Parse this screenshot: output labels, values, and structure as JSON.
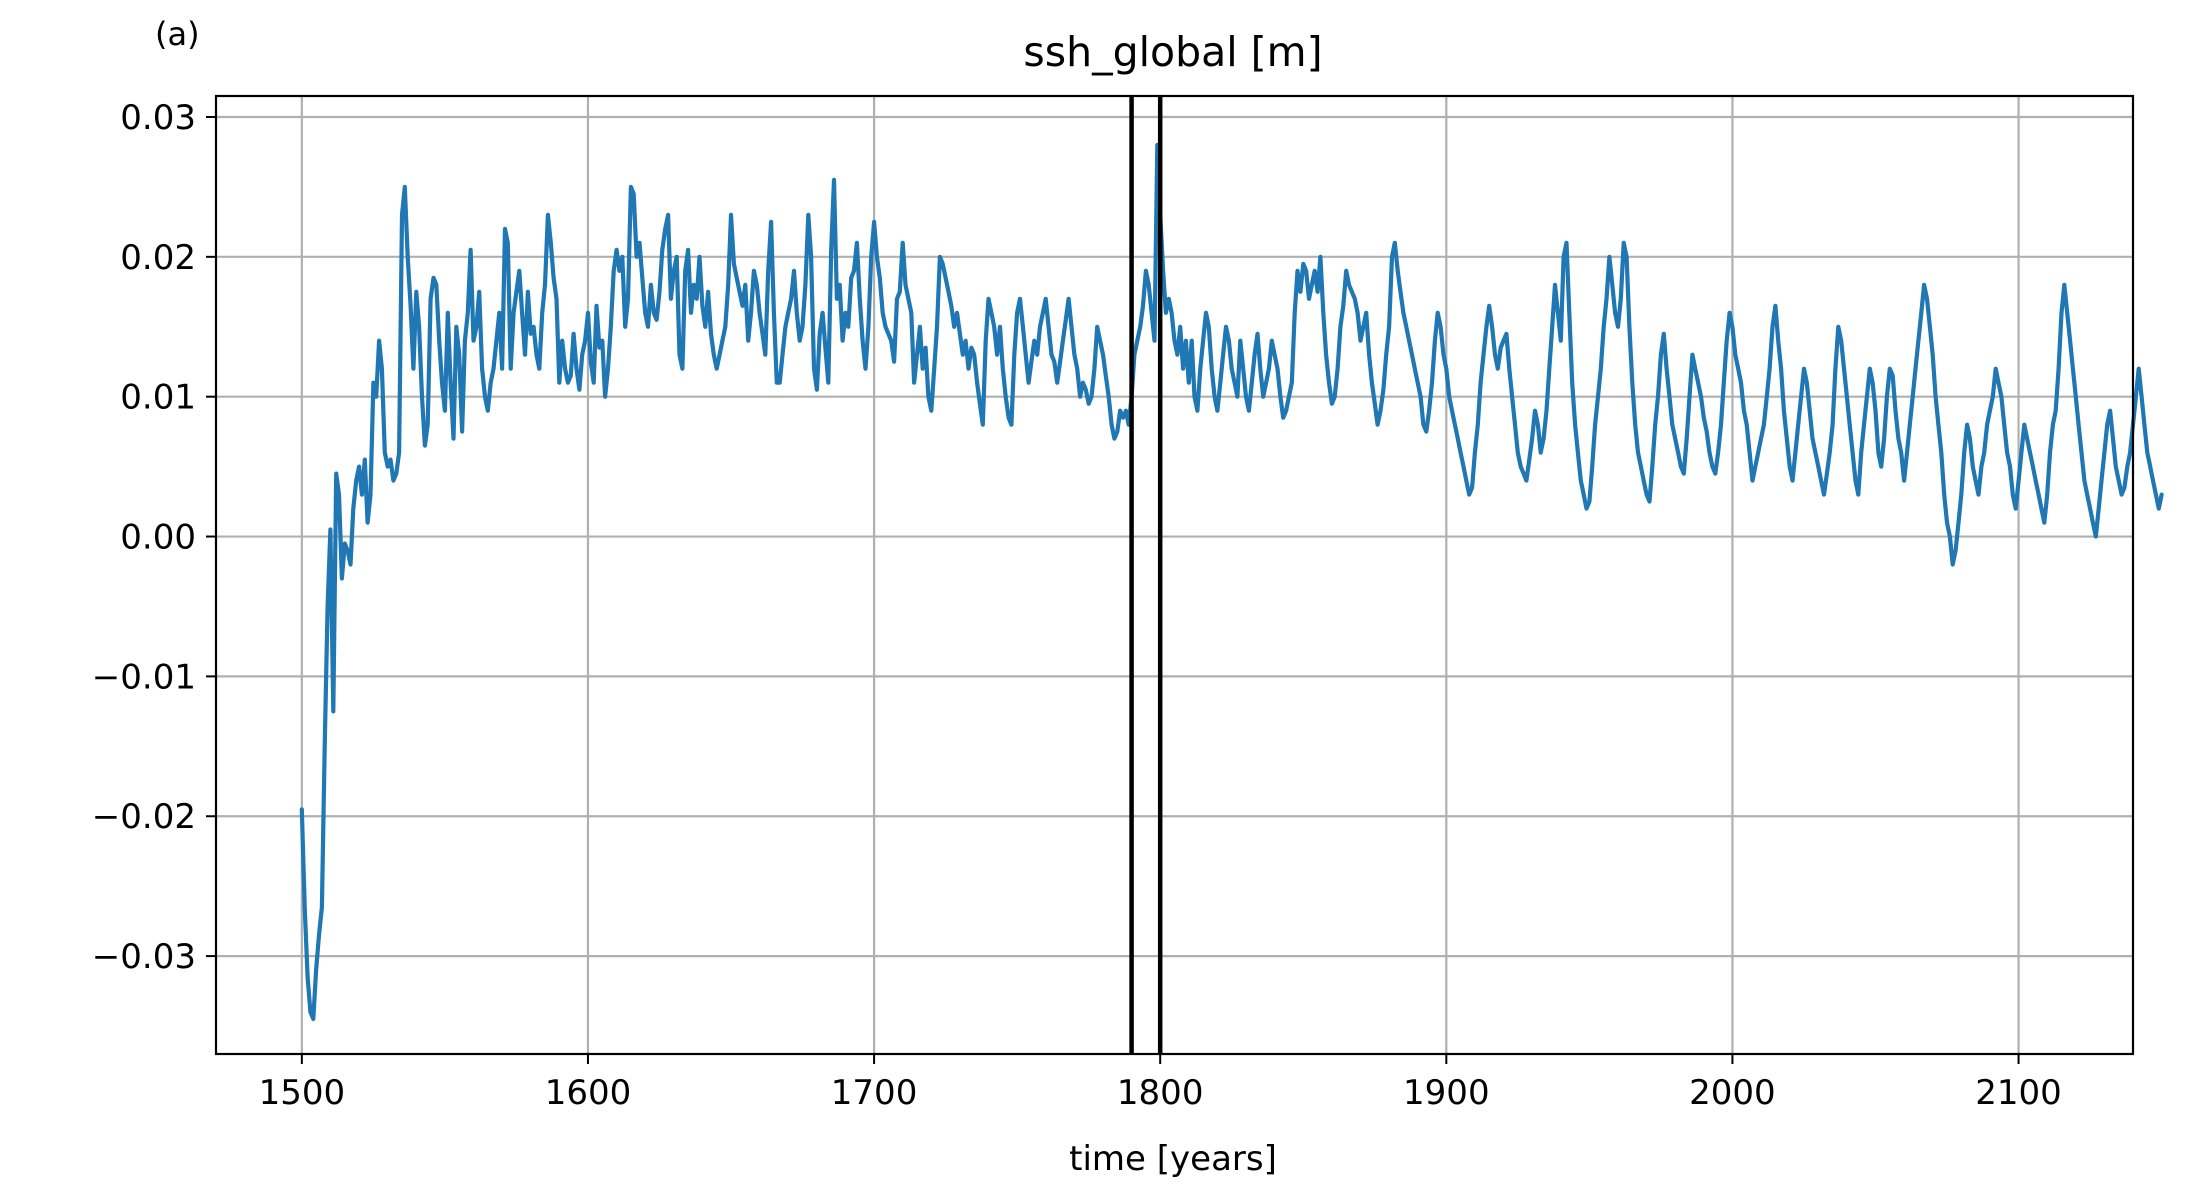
{
  "panel_label": "(a)",
  "colors": {
    "series": "#1f77b4",
    "grid": "#b0b0b0",
    "frame": "#000000",
    "marker": "#000000"
  },
  "chart_data": {
    "type": "line",
    "title": "ssh_global [m]",
    "xlabel": "time [years]",
    "ylabel": "",
    "xlim": [
      1470,
      2140
    ],
    "ylim": [
      -0.037,
      0.0315
    ],
    "xticks": [
      1500,
      1600,
      1700,
      1800,
      1900,
      2000,
      2100
    ],
    "xtick_labels": [
      "1500",
      "1600",
      "1700",
      "1800",
      "1900",
      "2000",
      "2100"
    ],
    "yticks": [
      0.03,
      0.02,
      0.01,
      0.0,
      -0.01,
      -0.02,
      -0.03
    ],
    "ytick_labels": [
      "0.03",
      "0.02",
      "0.01",
      "0.00",
      "−0.01",
      "−0.02",
      "−0.03"
    ],
    "grid": true,
    "vertical_lines": [
      1790,
      1800
    ],
    "series": [
      {
        "x_start": 1500,
        "x_step": 1,
        "values": [
          -0.0195,
          -0.0265,
          -0.0315,
          -0.034,
          -0.0345,
          -0.031,
          -0.0285,
          -0.0265,
          -0.015,
          -0.005,
          0.0005,
          -0.0125,
          0.0045,
          0.003,
          -0.003,
          -0.0005,
          -0.001,
          -0.002,
          0.002,
          0.004,
          0.005,
          0.003,
          0.0055,
          0.001,
          0.003,
          0.011,
          0.01,
          0.014,
          0.012,
          0.006,
          0.005,
          0.0055,
          0.004,
          0.0045,
          0.006,
          0.023,
          0.025,
          0.02,
          0.0165,
          0.012,
          0.0175,
          0.015,
          0.01,
          0.0065,
          0.008,
          0.017,
          0.0185,
          0.018,
          0.014,
          0.011,
          0.009,
          0.016,
          0.011,
          0.007,
          0.015,
          0.013,
          0.0075,
          0.014,
          0.016,
          0.0205,
          0.014,
          0.015,
          0.0175,
          0.012,
          0.01,
          0.009,
          0.011,
          0.012,
          0.014,
          0.016,
          0.012,
          0.022,
          0.021,
          0.012,
          0.016,
          0.0175,
          0.019,
          0.016,
          0.013,
          0.0175,
          0.0145,
          0.015,
          0.013,
          0.012,
          0.016,
          0.018,
          0.023,
          0.021,
          0.0185,
          0.017,
          0.011,
          0.014,
          0.012,
          0.011,
          0.0115,
          0.0145,
          0.012,
          0.0105,
          0.013,
          0.014,
          0.016,
          0.0125,
          0.011,
          0.0165,
          0.0135,
          0.014,
          0.01,
          0.012,
          0.015,
          0.019,
          0.0205,
          0.019,
          0.02,
          0.015,
          0.017,
          0.025,
          0.0245,
          0.02,
          0.021,
          0.0185,
          0.016,
          0.015,
          0.018,
          0.016,
          0.0155,
          0.0175,
          0.0205,
          0.022,
          0.023,
          0.017,
          0.019,
          0.02,
          0.013,
          0.012,
          0.019,
          0.0205,
          0.016,
          0.018,
          0.017,
          0.02,
          0.0165,
          0.015,
          0.0175,
          0.0145,
          0.013,
          0.012,
          0.013,
          0.014,
          0.015,
          0.018,
          0.023,
          0.0195,
          0.0185,
          0.0175,
          0.0165,
          0.018,
          0.014,
          0.016,
          0.019,
          0.018,
          0.016,
          0.0145,
          0.013,
          0.019,
          0.0225,
          0.016,
          0.011,
          0.011,
          0.013,
          0.015,
          0.016,
          0.017,
          0.019,
          0.016,
          0.014,
          0.015,
          0.018,
          0.023,
          0.02,
          0.012,
          0.0105,
          0.0145,
          0.016,
          0.0135,
          0.011,
          0.0205,
          0.0255,
          0.017,
          0.018,
          0.014,
          0.016,
          0.015,
          0.0185,
          0.019,
          0.021,
          0.017,
          0.014,
          0.012,
          0.015,
          0.02,
          0.0225,
          0.02,
          0.0185,
          0.016,
          0.015,
          0.0145,
          0.014,
          0.0125,
          0.017,
          0.0175,
          0.021,
          0.018,
          0.017,
          0.016,
          0.011,
          0.013,
          0.015,
          0.012,
          0.0135,
          0.01,
          0.009,
          0.012,
          0.015,
          0.02,
          0.0195,
          0.0185,
          0.0175,
          0.0165,
          0.015,
          0.016,
          0.0145,
          0.013,
          0.014,
          0.012,
          0.0135,
          0.013,
          0.011,
          0.0095,
          0.008,
          0.014,
          0.017,
          0.016,
          0.015,
          0.013,
          0.015,
          0.012,
          0.01,
          0.0085,
          0.008,
          0.013,
          0.016,
          0.017,
          0.015,
          0.013,
          0.011,
          0.0125,
          0.014,
          0.013,
          0.015,
          0.016,
          0.017,
          0.015,
          0.013,
          0.0125,
          0.011,
          0.0125,
          0.014,
          0.0155,
          0.017,
          0.015,
          0.013,
          0.012,
          0.01,
          0.011,
          0.0105,
          0.0095,
          0.01,
          0.012,
          0.015,
          0.014,
          0.013,
          0.0115,
          0.01,
          0.008,
          0.007,
          0.0075,
          0.009,
          0.0085,
          0.009,
          0.008,
          0.01,
          0.013,
          0.014,
          0.015,
          0.0165,
          0.019,
          0.018,
          0.016,
          0.014,
          0.028,
          0.023,
          0.019,
          0.016,
          0.017,
          0.016,
          0.014,
          0.013,
          0.015,
          0.012,
          0.014,
          0.011,
          0.014,
          0.01,
          0.009,
          0.012,
          0.014,
          0.016,
          0.015,
          0.012,
          0.01,
          0.009,
          0.011,
          0.013,
          0.015,
          0.014,
          0.012,
          0.011,
          0.01,
          0.014,
          0.012,
          0.01,
          0.009,
          0.011,
          0.013,
          0.0145,
          0.012,
          0.01,
          0.011,
          0.012,
          0.014,
          0.013,
          0.012,
          0.01,
          0.0085,
          0.009,
          0.01,
          0.011,
          0.016,
          0.019,
          0.0175,
          0.0195,
          0.019,
          0.017,
          0.018,
          0.019,
          0.0175,
          0.02,
          0.016,
          0.013,
          0.011,
          0.0095,
          0.01,
          0.012,
          0.015,
          0.0165,
          0.019,
          0.018,
          0.0175,
          0.017,
          0.016,
          0.014,
          0.015,
          0.016,
          0.013,
          0.011,
          0.0095,
          0.008,
          0.009,
          0.0105,
          0.013,
          0.015,
          0.02,
          0.021,
          0.019,
          0.0175,
          0.016,
          0.015,
          0.014,
          0.013,
          0.012,
          0.011,
          0.01,
          0.008,
          0.0075,
          0.009,
          0.011,
          0.014,
          0.016,
          0.015,
          0.013,
          0.012,
          0.01,
          0.009,
          0.008,
          0.007,
          0.006,
          0.005,
          0.004,
          0.003,
          0.0035,
          0.006,
          0.008,
          0.011,
          0.013,
          0.015,
          0.0165,
          0.015,
          0.013,
          0.012,
          0.0135,
          0.014,
          0.0145,
          0.012,
          0.01,
          0.008,
          0.006,
          0.005,
          0.0045,
          0.004,
          0.0055,
          0.007,
          0.009,
          0.008,
          0.006,
          0.007,
          0.009,
          0.012,
          0.015,
          0.018,
          0.016,
          0.014,
          0.02,
          0.021,
          0.016,
          0.011,
          0.008,
          0.006,
          0.004,
          0.003,
          0.002,
          0.0025,
          0.005,
          0.008,
          0.01,
          0.012,
          0.015,
          0.017,
          0.02,
          0.018,
          0.016,
          0.015,
          0.017,
          0.021,
          0.02,
          0.015,
          0.011,
          0.008,
          0.006,
          0.005,
          0.004,
          0.003,
          0.0025,
          0.005,
          0.008,
          0.01,
          0.013,
          0.0145,
          0.012,
          0.01,
          0.008,
          0.007,
          0.006,
          0.005,
          0.0045,
          0.007,
          0.01,
          0.013,
          0.012,
          0.011,
          0.01,
          0.0085,
          0.0075,
          0.006,
          0.005,
          0.0045,
          0.006,
          0.008,
          0.011,
          0.014,
          0.016,
          0.015,
          0.013,
          0.012,
          0.011,
          0.009,
          0.008,
          0.006,
          0.004,
          0.005,
          0.006,
          0.007,
          0.008,
          0.01,
          0.012,
          0.015,
          0.0165,
          0.014,
          0.012,
          0.009,
          0.007,
          0.005,
          0.004,
          0.006,
          0.008,
          0.01,
          0.012,
          0.011,
          0.009,
          0.007,
          0.006,
          0.005,
          0.004,
          0.003,
          0.0045,
          0.006,
          0.008,
          0.012,
          0.015,
          0.014,
          0.012,
          0.01,
          0.008,
          0.006,
          0.004,
          0.003,
          0.006,
          0.008,
          0.01,
          0.012,
          0.011,
          0.009,
          0.006,
          0.005,
          0.007,
          0.01,
          0.012,
          0.0115,
          0.009,
          0.007,
          0.006,
          0.004,
          0.006,
          0.008,
          0.01,
          0.012,
          0.014,
          0.016,
          0.018,
          0.017,
          0.015,
          0.013,
          0.01,
          0.008,
          0.006,
          0.003,
          0.001,
          0.0,
          -0.002,
          -0.001,
          0.001,
          0.003,
          0.006,
          0.008,
          0.007,
          0.005,
          0.004,
          0.003,
          0.005,
          0.006,
          0.008,
          0.009,
          0.01,
          0.012,
          0.011,
          0.01,
          0.008,
          0.006,
          0.005,
          0.003,
          0.002,
          0.004,
          0.006,
          0.008,
          0.007,
          0.006,
          0.005,
          0.004,
          0.003,
          0.002,
          0.001,
          0.003,
          0.006,
          0.008,
          0.009,
          0.012,
          0.016,
          0.018,
          0.016,
          0.014,
          0.012,
          0.01,
          0.008,
          0.006,
          0.004,
          0.003,
          0.002,
          0.001,
          0.0,
          0.002,
          0.004,
          0.006,
          0.008,
          0.009,
          0.007,
          0.005,
          0.004,
          0.003,
          0.0035,
          0.005,
          0.006,
          0.008,
          0.01,
          0.012,
          0.01,
          0.008,
          0.006,
          0.005,
          0.004,
          0.003,
          0.002,
          0.003
        ]
      }
    ]
  }
}
